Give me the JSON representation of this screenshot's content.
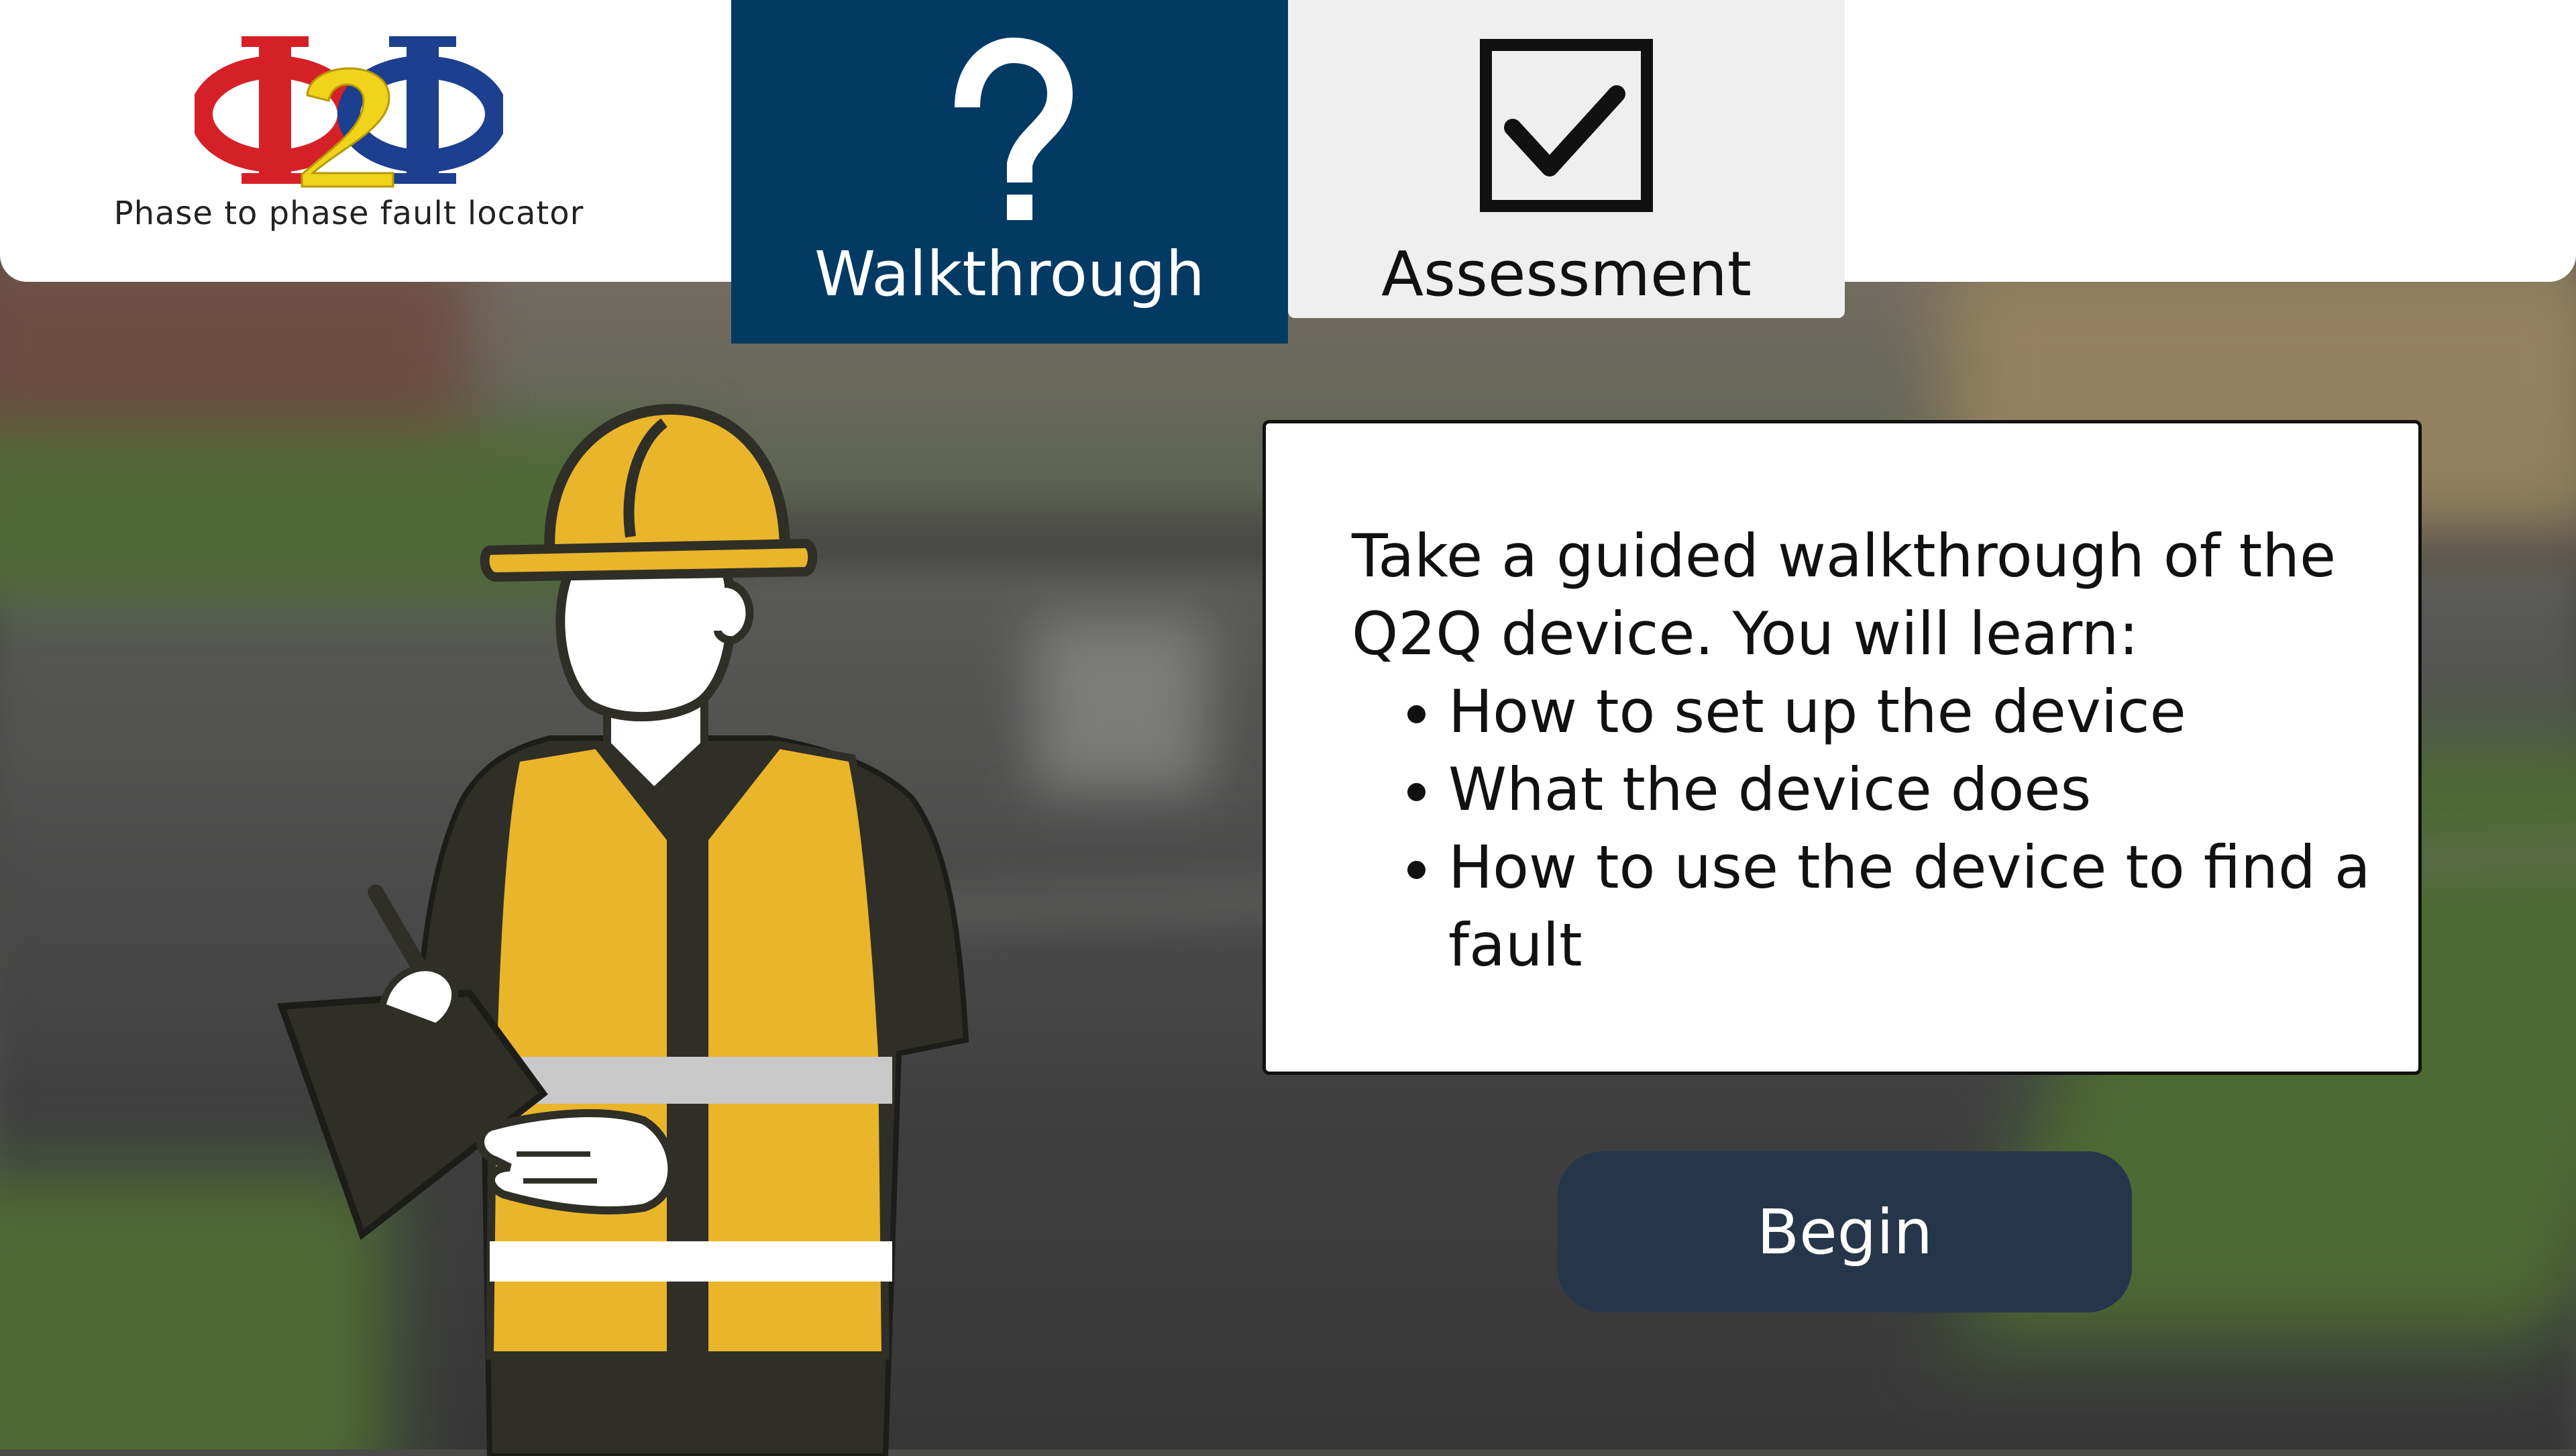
{
  "logo": {
    "caption": "Phase to phase fault locator",
    "mark_text": "Φ2Φ",
    "colors": {
      "red": "#d62027",
      "yellow": "#f1d31c",
      "blue": "#1d3f8f"
    }
  },
  "tabs": [
    {
      "label": "Walkthrough",
      "icon": "question-mark-icon",
      "active": true,
      "bg": "#033a63"
    },
    {
      "label": "Assessment",
      "icon": "checkbox-checked-icon",
      "active": false,
      "bg": "#efefef"
    }
  ],
  "panel": {
    "intro": "Take a guided walkthrough of the Q2Q device. You will learn:",
    "items": [
      "How to set up the device",
      "What the device does",
      "How to use the device to find a fault"
    ]
  },
  "begin_button": {
    "label": "Begin",
    "bg": "#25364a"
  },
  "illustration": {
    "icon": "construction-worker-with-clipboard",
    "vest_color": "#e9b52a",
    "outline_color": "#2f2f28"
  }
}
